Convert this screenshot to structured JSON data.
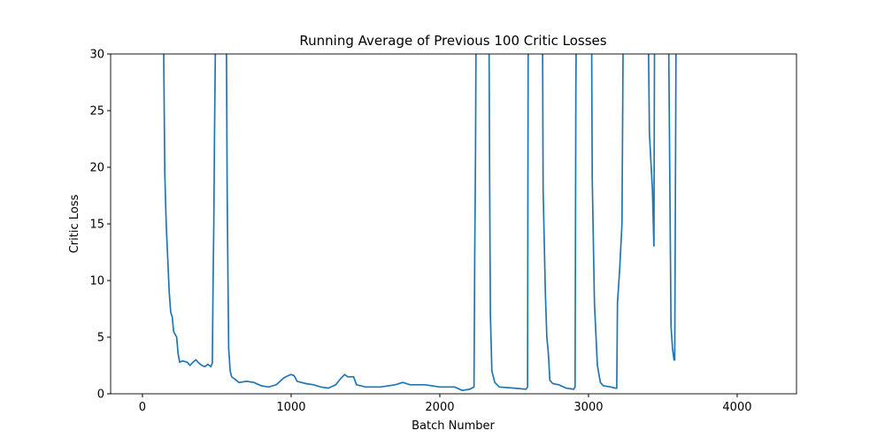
{
  "chart_data": {
    "type": "line",
    "title": "Running Average of Previous 100 Critic Losses",
    "xlabel": "Batch Number",
    "ylabel": "Critic Loss",
    "color": "#1f77b4",
    "x": [
      140,
      143,
      150,
      160,
      170,
      180,
      190,
      200,
      210,
      230,
      240,
      250,
      270,
      300,
      320,
      340,
      360,
      380,
      400,
      420,
      440,
      460,
      470,
      475,
      480,
      485,
      490,
      500,
      560,
      565,
      570,
      575,
      580,
      590,
      600,
      650,
      700,
      750,
      800,
      850,
      900,
      950,
      980,
      1000,
      1020,
      1040,
      1100,
      1150,
      1200,
      1250,
      1300,
      1330,
      1360,
      1380,
      1420,
      1440,
      1500,
      1600,
      1700,
      1750,
      1800,
      1900,
      2000,
      2100,
      2150,
      2200,
      2230,
      2235,
      2240,
      2245,
      2330,
      2335,
      2340,
      2350,
      2370,
      2400,
      2500,
      2580,
      2590,
      2595,
      2690,
      2695,
      2710,
      2720,
      2730,
      2740,
      2760,
      2800,
      2850,
      2900,
      2910,
      2915,
      2920,
      3020,
      3025,
      3040,
      3060,
      3080,
      3100,
      3150,
      3180,
      3190,
      3195,
      3210,
      3225,
      3235,
      3400,
      3410,
      3430,
      3440,
      3445,
      3530,
      3540,
      3555,
      3565,
      3575,
      3580,
      3590
    ],
    "values": [
      35,
      30,
      19.5,
      15,
      12,
      9,
      7.2,
      6.8,
      5.5,
      5,
      3.5,
      2.8,
      2.9,
      2.8,
      2.5,
      2.8,
      3.0,
      2.7,
      2.5,
      2.4,
      2.6,
      2.4,
      2.7,
      10,
      15,
      23,
      30,
      35,
      35,
      30,
      18,
      10,
      4,
      2,
      1.5,
      1.0,
      1.1,
      1.0,
      0.7,
      0.6,
      0.8,
      1.4,
      1.6,
      1.7,
      1.6,
      1.1,
      0.9,
      0.8,
      0.6,
      0.5,
      0.8,
      1.3,
      1.7,
      1.5,
      1.5,
      0.8,
      0.6,
      0.6,
      0.8,
      1.0,
      0.8,
      0.8,
      0.6,
      0.6,
      0.3,
      0.4,
      0.6,
      12,
      21,
      35,
      35,
      20,
      7,
      2,
      1,
      0.6,
      0.5,
      0.4,
      0.6,
      35,
      35,
      18,
      9,
      5,
      3.6,
      1.2,
      0.9,
      0.8,
      0.5,
      0.4,
      0.6,
      27,
      35,
      35,
      19,
      8,
      2.5,
      1,
      0.7,
      0.6,
      0.5,
      0.5,
      8,
      11,
      15,
      35,
      35,
      23,
      18,
      13,
      35,
      35,
      30,
      6,
      4,
      3,
      3,
      35
    ],
    "xlim": [
      -214,
      4399
    ],
    "ylim": [
      0,
      30
    ],
    "xticks": [
      0,
      1000,
      2000,
      3000,
      4000
    ],
    "yticks": [
      0,
      5,
      10,
      15,
      20,
      25,
      30
    ]
  }
}
